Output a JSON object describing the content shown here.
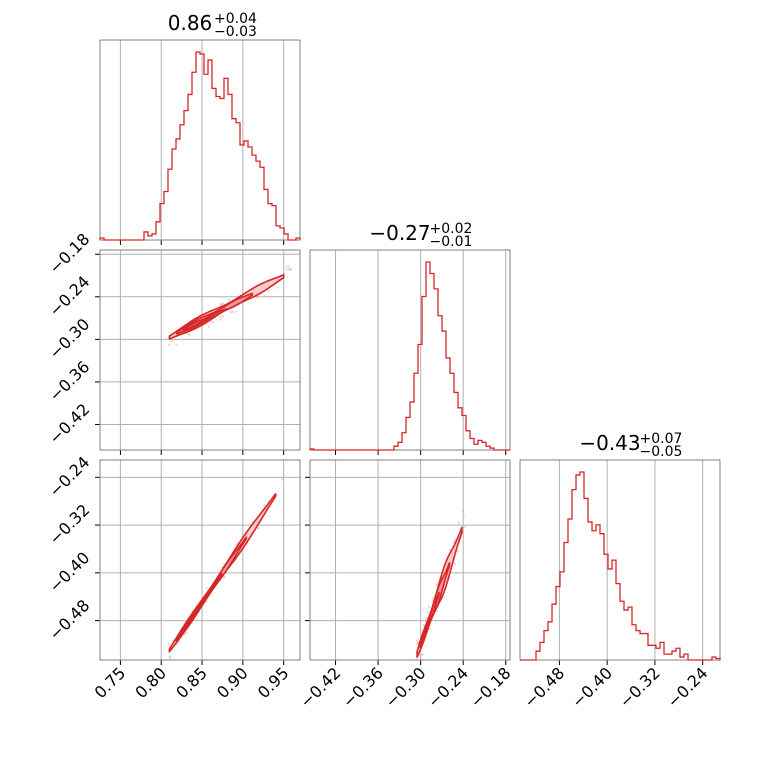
{
  "chart_data": {
    "type": "corner",
    "color": "#d62728",
    "fill_colors": [
      "#f7c4c6",
      "#ee8f93",
      "#e25559"
    ],
    "parameters": [
      {
        "title_value": "0.86",
        "title_plus": "+0.04",
        "title_minus": "−0.03",
        "range": [
          0.725,
          0.97
        ],
        "ticks": [
          0.75,
          0.8,
          0.85,
          0.9,
          0.95
        ],
        "tick_labels": [
          "0.75",
          "0.80",
          "0.85",
          "0.90",
          "0.95"
        ]
      },
      {
        "title_value": "−0.27",
        "title_plus": "+0.02",
        "title_minus": "−0.01",
        "range": [
          -0.456,
          -0.174
        ],
        "ticks": [
          -0.42,
          -0.36,
          -0.3,
          -0.24,
          -0.18
        ],
        "tick_labels": [
          "−0.42",
          "−0.36",
          "−0.30",
          "−0.24",
          "−0.18"
        ]
      },
      {
        "title_value": "−0.43",
        "title_plus": "+0.07",
        "title_minus": "−0.05",
        "range": [
          -0.546,
          -0.211
        ],
        "ticks": [
          -0.48,
          -0.4,
          -0.32,
          -0.24
        ],
        "tick_labels": [
          "−0.48",
          "−0.40",
          "−0.32",
          "−0.24"
        ]
      }
    ],
    "histograms": [
      {
        "param": 0,
        "start": 0.725,
        "bin_width": 0.0049,
        "counts": [
          2,
          0,
          0,
          0,
          0,
          0,
          0,
          0,
          0,
          0,
          0,
          8,
          4,
          6,
          18,
          36,
          48,
          70,
          90,
          100,
          114,
          128,
          144,
          166,
          186,
          184,
          164,
          178,
          150,
          142,
          140,
          160,
          144,
          120,
          116,
          94,
          98,
          92,
          84,
          78,
          72,
          50,
          36,
          34,
          14,
          12,
          6,
          0,
          0,
          2
        ]
      },
      {
        "param": 1,
        "start": -0.456,
        "bin_width": 0.00564,
        "counts": [
          1,
          0,
          0,
          0,
          0,
          0,
          0,
          0,
          0,
          0,
          0,
          0,
          0,
          0,
          0,
          0,
          0,
          0,
          0,
          0,
          0,
          4,
          8,
          18,
          34,
          50,
          80,
          110,
          160,
          196,
          184,
          168,
          140,
          124,
          96,
          80,
          60,
          44,
          36,
          20,
          12,
          6,
          10,
          8,
          4,
          2,
          0,
          0,
          0,
          0
        ]
      },
      {
        "param": 2,
        "start": -0.546,
        "bin_width": 0.0067,
        "counts": [
          0,
          0,
          0,
          0,
          6,
          12,
          20,
          26,
          38,
          50,
          60,
          80,
          96,
          116,
          126,
          128,
          110,
          94,
          88,
          92,
          86,
          72,
          62,
          68,
          52,
          40,
          34,
          36,
          24,
          20,
          18,
          18,
          10,
          10,
          8,
          12,
          4,
          4,
          6,
          8,
          2,
          4,
          0,
          0,
          0,
          0,
          0,
          0,
          2,
          1
        ]
      }
    ],
    "pairs": [
      {
        "x_param": 0,
        "y_param": 1,
        "slope": 0.66,
        "intercept": -0.838,
        "x_range": [
          0.81,
          0.95
        ],
        "width": 0.008,
        "offset": 0.006
      },
      {
        "x_param": 0,
        "y_param": 2,
        "slope": 2.0,
        "intercept": -2.15,
        "x_range": [
          0.81,
          0.94
        ],
        "width": 0.009,
        "offset": 0.0
      },
      {
        "x_param": 1,
        "y_param": 2,
        "slope": 3.3,
        "intercept": 0.47,
        "x_range": [
          -0.305,
          -0.242
        ],
        "width": 0.018,
        "offset": 0.0
      }
    ]
  }
}
